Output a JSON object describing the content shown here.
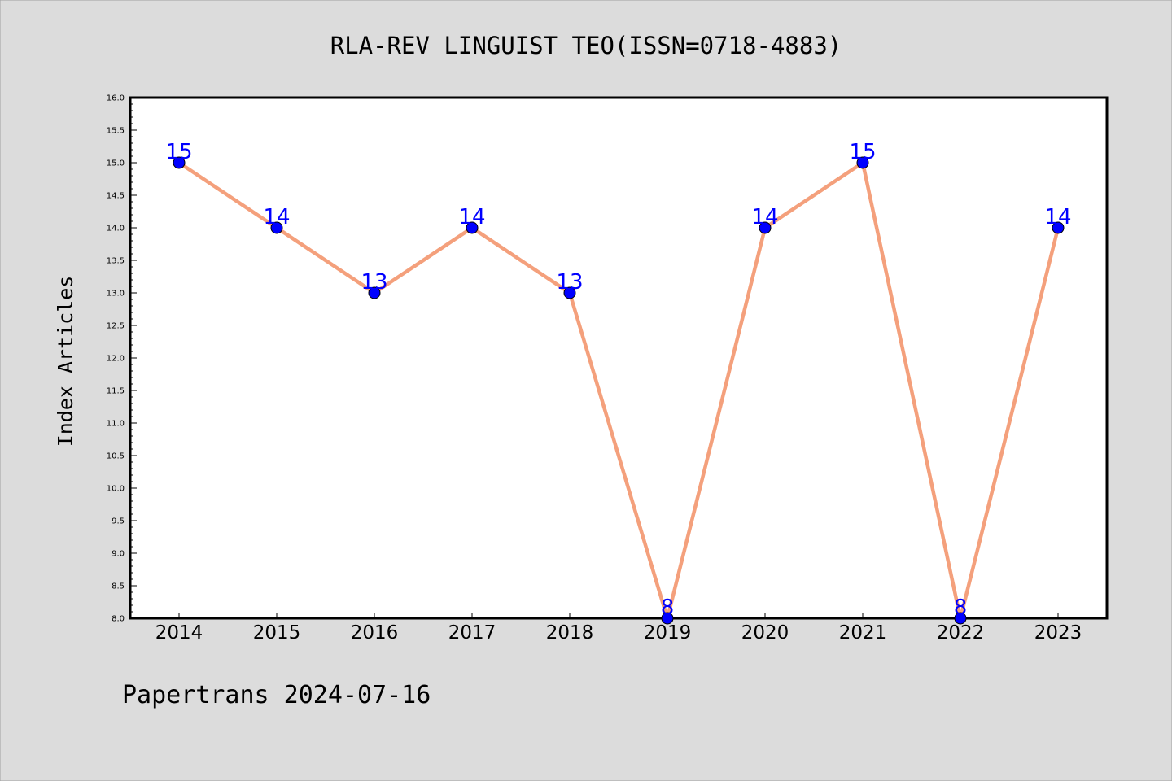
{
  "chart_data": {
    "type": "line",
    "title": "RLA-REV LINGUIST TEO(ISSN=0718-4883)",
    "xlabel": "",
    "ylabel": "Index Articles",
    "categories": [
      "2014",
      "2015",
      "2016",
      "2017",
      "2018",
      "2019",
      "2020",
      "2021",
      "2022",
      "2023"
    ],
    "values": [
      15,
      14,
      13,
      14,
      13,
      8,
      14,
      15,
      8,
      14
    ],
    "data_labels": [
      "15",
      "14",
      "13",
      "14",
      "13",
      "8",
      "14",
      "15",
      "8",
      "14"
    ],
    "ylim": [
      8.0,
      16.0
    ],
    "yticks": [
      "8.0",
      "8.5",
      "9.0",
      "9.5",
      "10.0",
      "10.5",
      "11.0",
      "11.5",
      "12.0",
      "12.5",
      "13.0",
      "13.5",
      "14.0",
      "14.5",
      "15.0",
      "15.5",
      "16.0"
    ],
    "grid": false,
    "line_color": "#f4a07c",
    "marker_color": "#0000ff",
    "label_color": "#0000ff"
  },
  "footer": "Papertrans 2024-07-16"
}
